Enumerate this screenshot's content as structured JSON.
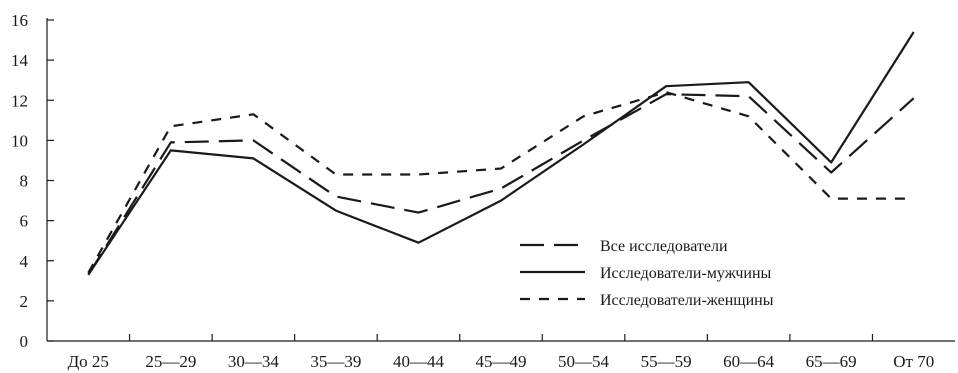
{
  "chart_data": {
    "type": "line",
    "categories": [
      "До 25",
      "25—29",
      "30—34",
      "35—39",
      "40—44",
      "45—49",
      "50—54",
      "55—59",
      "60—64",
      "65—69",
      "От 70"
    ],
    "y_ticks": [
      0,
      2,
      4,
      6,
      8,
      10,
      12,
      14,
      16
    ],
    "ylim": [
      0,
      16
    ],
    "legend_position": "bottom-right",
    "grid": false,
    "series": [
      {
        "name": "Все исследователи",
        "style": "long-dash",
        "color": "#1a1a1a",
        "values": [
          3.3,
          9.9,
          10.0,
          7.2,
          6.4,
          7.6,
          10.0,
          12.3,
          12.2,
          8.4,
          12.1
        ]
      },
      {
        "name": "Исследователи-мужчины",
        "style": "solid",
        "color": "#1a1a1a",
        "values": [
          3.3,
          9.5,
          9.1,
          6.5,
          4.9,
          7.0,
          9.8,
          12.7,
          12.9,
          8.9,
          15.4
        ]
      },
      {
        "name": "Исследователи-женщины",
        "style": "short-dash",
        "color": "#1a1a1a",
        "values": [
          3.4,
          10.7,
          11.3,
          8.3,
          8.3,
          8.6,
          11.2,
          12.4,
          11.2,
          7.1,
          7.1
        ]
      }
    ]
  }
}
